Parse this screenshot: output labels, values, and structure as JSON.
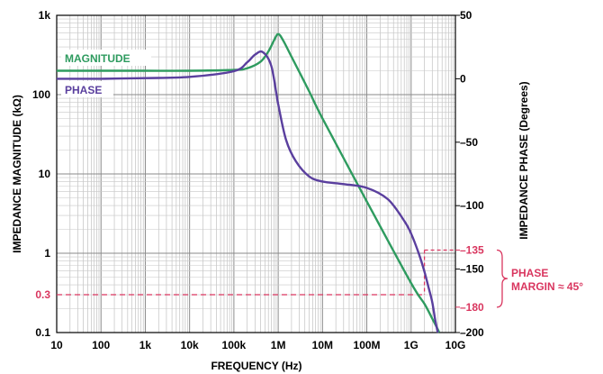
{
  "chart_data": {
    "type": "line",
    "xlabel": "FREQUENCY (Hz)",
    "ylabel_left": "IMPEDANCE MAGNITUDE (kΩ)",
    "ylabel_right": "IMPEDANCE PHASE (Degrees)",
    "x_scale": "log",
    "xlim": [
      10,
      10000000000
    ],
    "left_scale": "log",
    "left_ylim": [
      0.1,
      1000
    ],
    "right_ylim": [
      -200,
      50
    ],
    "grid": true,
    "x_ticks": [
      {
        "value": 10,
        "label": "10"
      },
      {
        "value": 100,
        "label": "100"
      },
      {
        "value": 1000,
        "label": "1k"
      },
      {
        "value": 10000,
        "label": "10k"
      },
      {
        "value": 100000,
        "label": "100k"
      },
      {
        "value": 1000000,
        "label": "1M"
      },
      {
        "value": 10000000,
        "label": "10M"
      },
      {
        "value": 100000000,
        "label": "100M"
      },
      {
        "value": 1000000000,
        "label": "1G"
      },
      {
        "value": 10000000000,
        "label": "10G"
      }
    ],
    "left_ticks": [
      {
        "value": 0.1,
        "label": "0.1"
      },
      {
        "value": 1,
        "label": "1"
      },
      {
        "value": 10,
        "label": "10"
      },
      {
        "value": 100,
        "label": "100"
      },
      {
        "value": 1000,
        "label": "1k"
      }
    ],
    "left_highlight_tick": {
      "value": 0.3,
      "label": "0.3"
    },
    "right_ticks": [
      {
        "value": 50,
        "label": "50"
      },
      {
        "value": 0,
        "label": "0"
      },
      {
        "value": -50,
        "label": "–50"
      },
      {
        "value": -100,
        "label": "–100"
      },
      {
        "value": -150,
        "label": "–150"
      },
      {
        "value": -200,
        "label": "–200"
      }
    ],
    "right_highlight_ticks": [
      {
        "value": -135,
        "label": "–135"
      },
      {
        "value": -180,
        "label": "–180"
      }
    ],
    "series": [
      {
        "name": "MAGNITUDE",
        "axis": "left",
        "color": "#2e9b5f",
        "x": [
          10,
          100,
          1000,
          10000,
          100000,
          200000,
          400000,
          600000,
          800000,
          1000000,
          1300000,
          2000000,
          5000000,
          10000000,
          100000000,
          1000000000,
          2000000000,
          3000000000,
          4000000000,
          4300000000
        ],
        "y": [
          200,
          200,
          200,
          200,
          205,
          215,
          260,
          350,
          480,
          580,
          480,
          300,
          110,
          50,
          4.5,
          0.42,
          0.23,
          0.15,
          0.11,
          0.1
        ]
      },
      {
        "name": "PHASE",
        "axis": "right",
        "color": "#5a3f9e",
        "x": [
          10,
          100,
          1000,
          10000,
          100000,
          200000,
          300000,
          450000,
          700000,
          1000000,
          1500000,
          2500000,
          5000000,
          10000000,
          30000000,
          100000000,
          300000000,
          700000000,
          1000000000,
          1500000000,
          2000000000,
          2500000000,
          3000000000,
          3500000000,
          4000000000
        ],
        "y": [
          0,
          0,
          0.5,
          1.5,
          6,
          13,
          19,
          21,
          10,
          -20,
          -48,
          -65,
          -77,
          -81,
          -83,
          -86,
          -95,
          -112,
          -122,
          -138,
          -152,
          -165,
          -176,
          -190,
          -200
        ]
      }
    ],
    "annotations": {
      "magnitude_label": "MAGNITUDE",
      "phase_label": "PHASE",
      "phase_margin_line1": "PHASE",
      "phase_margin_line2": "MARGIN ≈ 45°",
      "annotation_color": "#d9365f",
      "crossover_frequency": 2000000000
    }
  }
}
